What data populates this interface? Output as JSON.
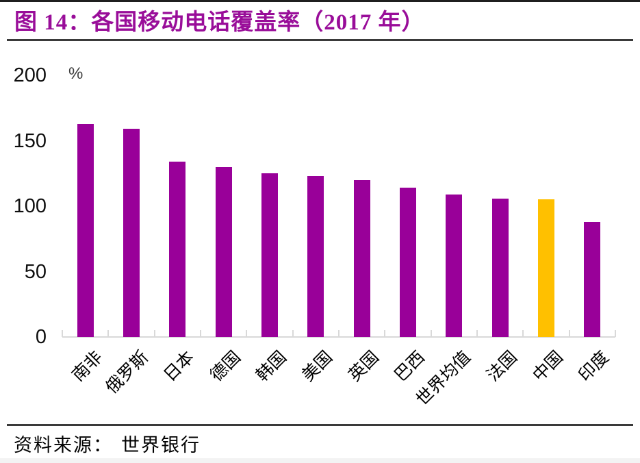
{
  "figure": {
    "title": "图 14：各国移动电话覆盖率（2017 年）",
    "accent_color": "#990D99",
    "source_label": "资料来源：",
    "source_value": "世界银行"
  },
  "chart_data": {
    "type": "bar",
    "title": "图 14：各国移动电话覆盖率（2017 年）",
    "unit": "%",
    "categories": [
      "南非",
      "俄罗斯",
      "日本",
      "德国",
      "韩国",
      "美国",
      "英国",
      "巴西",
      "世界均值",
      "法国",
      "中国",
      "印度"
    ],
    "values": [
      163,
      159,
      134,
      130,
      125,
      123,
      120,
      114,
      109,
      106,
      105,
      88
    ],
    "highlight_category": "中国",
    "bar_color": "#990099",
    "highlight_color": "#FFC000",
    "axis_color": "#D9D9D9",
    "ylim": [
      0,
      200
    ],
    "yticks": [
      0,
      50,
      100,
      150,
      200
    ],
    "x_label_rotation_deg": 45,
    "grid": false,
    "legend": false,
    "source": "世界银行"
  }
}
